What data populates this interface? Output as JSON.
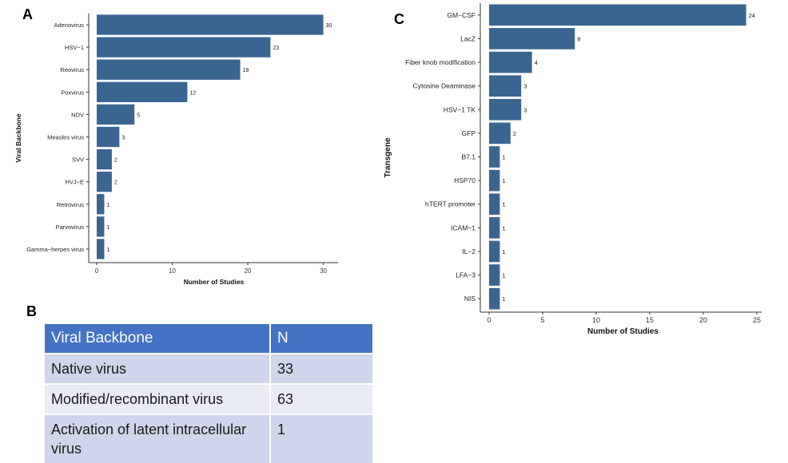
{
  "panels": {
    "a": "A",
    "b": "B",
    "c": "C"
  },
  "colors": {
    "bar": "#3b6591",
    "header": "#4472c4"
  },
  "table": {
    "headers": [
      "Viral Backbone",
      "N"
    ],
    "rows": [
      [
        "Native virus",
        "33"
      ],
      [
        "Modified/recombinant virus",
        "63"
      ],
      [
        "Activation of latent intracellular virus",
        "1"
      ]
    ]
  },
  "chart_data": [
    {
      "type": "bar",
      "orientation": "horizontal",
      "panel": "A",
      "categories": [
        "Adenovirus",
        "HSV−1",
        "Reovirus",
        "Poxvirus",
        "NDV",
        "Measles virus",
        "SVV",
        "HVJ−E",
        "Retrovirus",
        "Parvovirus",
        "Gamma−herpes virus"
      ],
      "values": [
        30,
        23,
        19,
        12,
        5,
        3,
        2,
        2,
        1,
        1,
        1
      ],
      "xlabel": "Number of Studies",
      "ylabel": "Viral Backbone",
      "xlim": [
        0,
        31
      ],
      "xticks": [
        0,
        10,
        20,
        30
      ]
    },
    {
      "type": "bar",
      "orientation": "horizontal",
      "panel": "C",
      "categories": [
        "GM−CSF",
        "LacZ",
        "Fiber knob modification",
        "Cytosine Deaminase",
        "HSV−1 TK",
        "GFP",
        "B7.1",
        "HSP70",
        "hTERT promoter",
        "ICAM−1",
        "IL−2",
        "LFA−3",
        "NIS"
      ],
      "values": [
        24,
        8,
        4,
        3,
        3,
        2,
        1,
        1,
        1,
        1,
        1,
        1,
        1
      ],
      "xlabel": "Number of Studies",
      "ylabel": "Transgene",
      "xlim": [
        0,
        25
      ],
      "xticks": [
        0,
        5,
        10,
        15,
        20,
        25
      ]
    }
  ]
}
